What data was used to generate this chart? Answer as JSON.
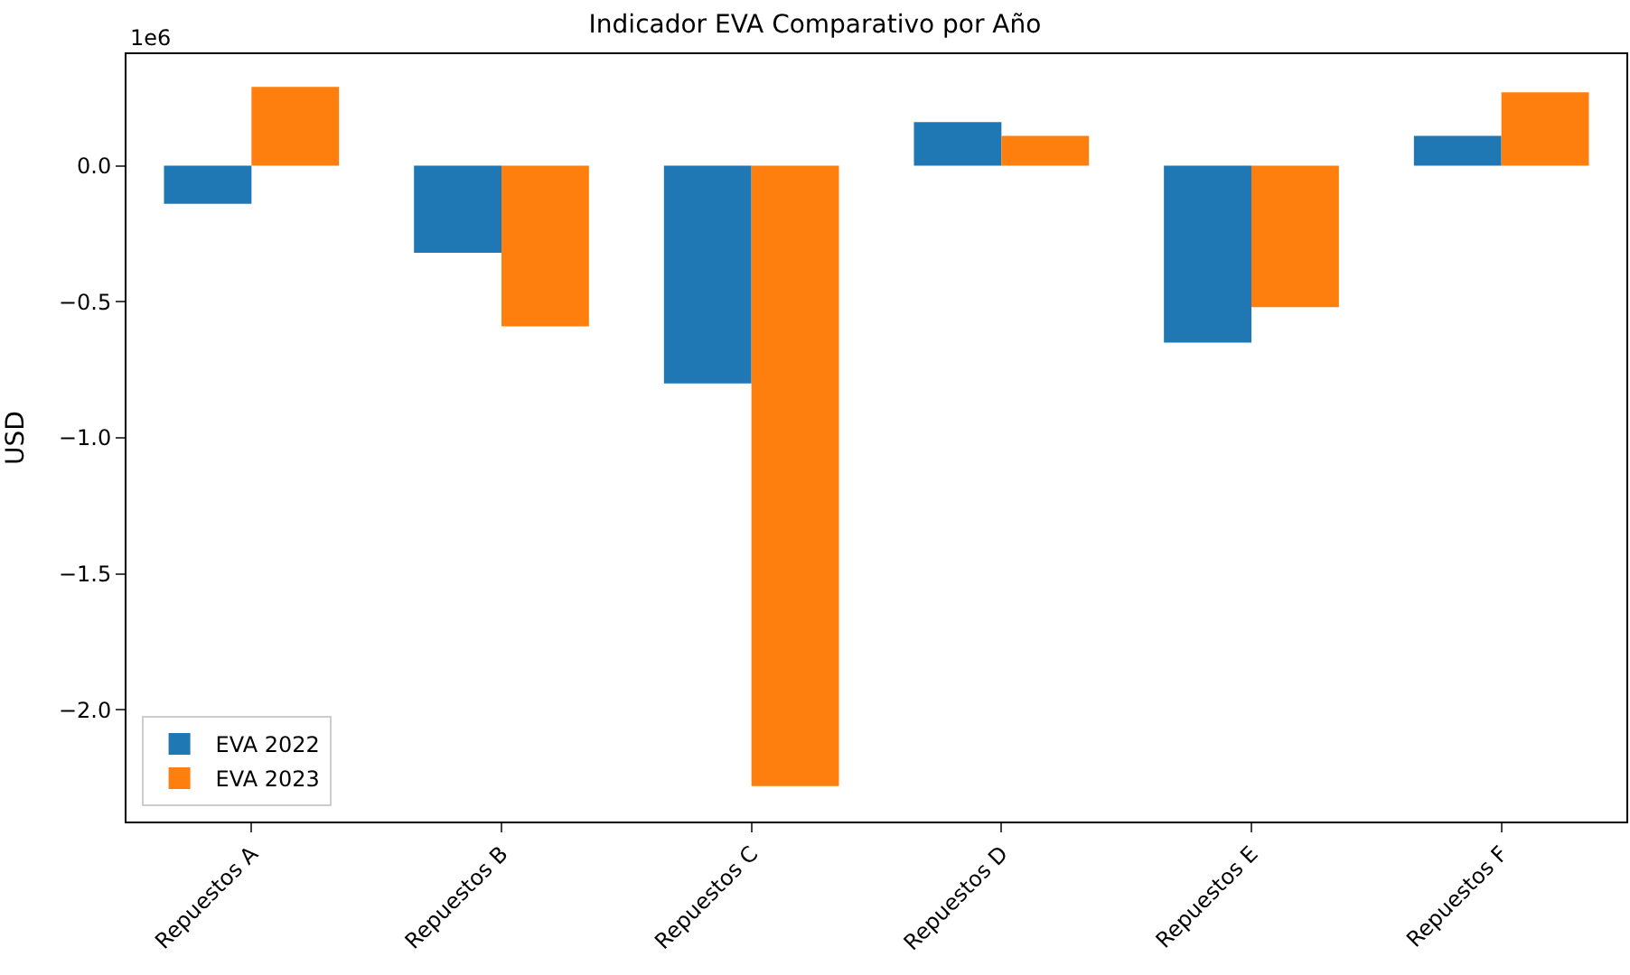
{
  "chart_data": {
    "type": "bar",
    "title": "Indicador EVA Comparativo por Año",
    "ylabel": "USD",
    "categories": [
      "Repuestos A",
      "Repuestos B",
      "Repuestos C",
      "Repuestos D",
      "Repuestos E",
      "Repuestos F"
    ],
    "series": [
      {
        "name": "EVA 2022",
        "color": "#1f77b4",
        "values": [
          -0.14,
          -0.32,
          -0.8,
          0.16,
          -0.65,
          0.11
        ]
      },
      {
        "name": "EVA 2023",
        "color": "#ff7f0e",
        "values": [
          0.29,
          -0.59,
          -2.28,
          0.11,
          -0.52,
          0.27
        ]
      }
    ],
    "ylim": [
      -2.41,
      0.41
    ],
    "yticks": [
      {
        "value": -2,
        "label": "−2.0"
      },
      {
        "value": -1.5,
        "label": "−1.5"
      },
      {
        "value": -1,
        "label": "−1.0"
      },
      {
        "value": -0.5,
        "label": "−0.5"
      },
      {
        "value": 0,
        "label": "0.0"
      }
    ],
    "annotations": [
      "1e6"
    ],
    "legend": "bottom left"
  }
}
